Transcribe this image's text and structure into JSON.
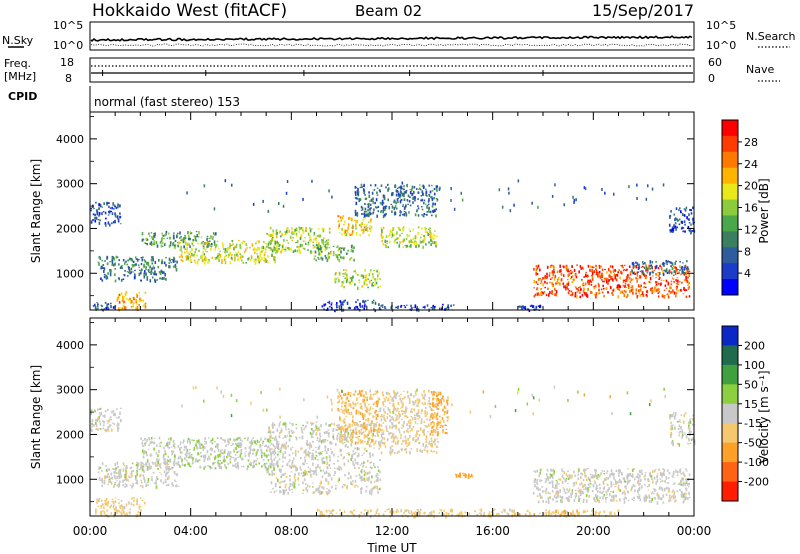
{
  "header": {
    "station": "Hokkaido West (fitACF)",
    "beam": "Beam 02",
    "date": "15/Sep/2017"
  },
  "info_panels": {
    "nsky_label": "N.Sky",
    "nsky_max": "10^5",
    "nsky_min": "10^0",
    "nsearch_label": "N.Search",
    "right_max": "10^5",
    "right_min": "10^0",
    "freq_label": "Freq.",
    "freq_unit": "[MHz]",
    "freq_max": "18",
    "freq_min": "8",
    "nave_label": "Nave",
    "nave_max": "60",
    "nave_min": "0",
    "cpid_label": "CPID",
    "cpid_value": "normal (fast stereo) 153"
  },
  "x_axis": {
    "label": "Time UT",
    "ticks": [
      "00:00",
      "04:00",
      "08:00",
      "12:00",
      "16:00",
      "20:00",
      "00:00"
    ]
  },
  "chart_data": [
    {
      "type": "heatmap",
      "name": "power",
      "ylabel": "Slant Range [km]",
      "yticks": [
        "1000",
        "2000",
        "3000",
        "4000"
      ],
      "ylim": [
        180,
        4600
      ],
      "xlim": [
        0,
        24
      ],
      "colorbar": {
        "label": "Power [dB]",
        "ticks": [
          "4",
          "8",
          "12",
          "16",
          "20",
          "24",
          "28"
        ],
        "colors": [
          "#0000ff",
          "#1a3cc8",
          "#2e5c9e",
          "#3a8060",
          "#4aa84a",
          "#8ccc3c",
          "#e8e81a",
          "#ffb400",
          "#ff7800",
          "#ff3c00",
          "#ff0000"
        ]
      },
      "echo_regions": [
        {
          "t0": 0.0,
          "t1": 1.0,
          "r0": 190,
          "r1": 380,
          "db": 6
        },
        {
          "t0": 1.0,
          "t1": 2.2,
          "r0": 200,
          "r1": 600,
          "db": 22
        },
        {
          "t0": 0.0,
          "t1": 1.2,
          "r0": 2100,
          "r1": 2600,
          "db": 6
        },
        {
          "t0": 0.3,
          "t1": 3.5,
          "r0": 1100,
          "r1": 1400,
          "db": 10
        },
        {
          "t0": 0.3,
          "t1": 3.0,
          "r0": 850,
          "r1": 1100,
          "db": 8
        },
        {
          "t0": 2.0,
          "t1": 5.0,
          "r0": 1600,
          "r1": 1950,
          "db": 12
        },
        {
          "t0": 3.5,
          "t1": 7.5,
          "r0": 1250,
          "r1": 1750,
          "db": 18
        },
        {
          "t0": 7.0,
          "t1": 9.5,
          "r0": 1500,
          "r1": 2050,
          "db": 17
        },
        {
          "t0": 8.8,
          "t1": 10.5,
          "r0": 1300,
          "r1": 1650,
          "db": 14
        },
        {
          "t0": 9.7,
          "t1": 11.5,
          "r0": 700,
          "r1": 1100,
          "db": 17
        },
        {
          "t0": 9.8,
          "t1": 11.2,
          "r0": 1850,
          "r1": 2300,
          "db": 20
        },
        {
          "t0": 11.5,
          "t1": 13.8,
          "r0": 1600,
          "r1": 2050,
          "db": 18
        },
        {
          "t0": 10.5,
          "t1": 13.8,
          "r0": 2300,
          "r1": 3000,
          "db": 8
        },
        {
          "t0": 9.2,
          "t1": 11.5,
          "r0": 190,
          "r1": 420,
          "db": 5
        },
        {
          "t0": 11.5,
          "t1": 14.5,
          "r0": 190,
          "r1": 320,
          "db": 5
        },
        {
          "t0": 17.0,
          "t1": 18.0,
          "r0": 190,
          "r1": 300,
          "db": 5
        },
        {
          "t0": 17.6,
          "t1": 23.8,
          "r0": 500,
          "r1": 1200,
          "db": 27
        },
        {
          "t0": 21.5,
          "t1": 23.8,
          "r0": 1000,
          "r1": 1300,
          "db": 8
        },
        {
          "t0": 23.0,
          "t1": 24.0,
          "r0": 1900,
          "r1": 2500,
          "db": 6
        }
      ]
    },
    {
      "type": "heatmap",
      "name": "velocity",
      "ylabel": "Slant Range [km]",
      "yticks": [
        "1000",
        "2000",
        "3000",
        "4000"
      ],
      "ylim": [
        180,
        4600
      ],
      "xlim": [
        0,
        24
      ],
      "colorbar": {
        "label": "Velocity [m s⁻¹]",
        "ticks": [
          "200",
          "100",
          "50",
          "15",
          "-15",
          "-50",
          "-100",
          "-200"
        ],
        "colors": [
          "#0a28c8",
          "#1e6b4e",
          "#3fa03f",
          "#8ccf40",
          "#c8c8c8",
          "#f5c86e",
          "#ffa028",
          "#ff6414",
          "#ff1e00"
        ]
      },
      "echo_regions": [
        {
          "t0": 0.2,
          "t1": 2.2,
          "r0": 190,
          "r1": 600,
          "vel": -30
        },
        {
          "t0": 0.0,
          "t1": 1.2,
          "r0": 2100,
          "r1": 2600,
          "vel": 0
        },
        {
          "t0": 0.3,
          "t1": 3.5,
          "r0": 850,
          "r1": 1400,
          "vel": 0
        },
        {
          "t0": 2.0,
          "t1": 7.5,
          "r0": 1250,
          "r1": 1950,
          "vel": 5
        },
        {
          "t0": 7.0,
          "t1": 11.5,
          "r0": 700,
          "r1": 2300,
          "vel": 0
        },
        {
          "t0": 9.8,
          "t1": 11.5,
          "r0": 1800,
          "r1": 3000,
          "vel": -40
        },
        {
          "t0": 11.5,
          "t1": 13.8,
          "r0": 1600,
          "r1": 3000,
          "vel": -20
        },
        {
          "t0": 13.5,
          "t1": 14.2,
          "r0": 2000,
          "r1": 3000,
          "vel": -60
        },
        {
          "t0": 14.5,
          "t1": 15.2,
          "r0": 1080,
          "r1": 1160,
          "vel": -80
        },
        {
          "t0": 9.0,
          "t1": 17.0,
          "r0": 190,
          "r1": 350,
          "vel": -30
        },
        {
          "t0": 17.6,
          "t1": 23.8,
          "r0": 500,
          "r1": 1250,
          "vel": 0
        },
        {
          "t0": 17.0,
          "t1": 21.0,
          "r0": 190,
          "r1": 330,
          "vel": -40
        },
        {
          "t0": 23.0,
          "t1": 24.0,
          "r0": 1800,
          "r1": 2500,
          "vel": 0
        }
      ]
    }
  ]
}
